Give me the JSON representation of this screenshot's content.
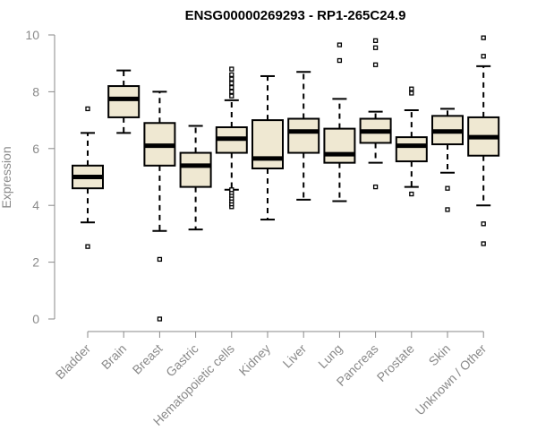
{
  "chart_data": {
    "type": "boxplot",
    "title": "ENSG00000269293 - RP1-265C24.9",
    "xlabel": "",
    "ylabel": "Expression",
    "ylim": [
      0,
      10
    ],
    "yticks": [
      0,
      2,
      4,
      6,
      8,
      10
    ],
    "box_fill": "#efe8d2",
    "box_stroke": "#000000",
    "categories": [
      "Bladder",
      "Brain",
      "Breast",
      "Gastric",
      "Hematopoietic cells",
      "Kidney",
      "Liver",
      "Lung",
      "Pancreas",
      "Prostate",
      "Skin",
      "Unknown / Other"
    ],
    "boxes": [
      {
        "category": "Bladder",
        "whisker_low": 3.4,
        "q1": 4.6,
        "median": 5.0,
        "q3": 5.4,
        "whisker_high": 6.55,
        "outliers": [
          2.55,
          7.4
        ]
      },
      {
        "category": "Brain",
        "whisker_low": 6.55,
        "q1": 7.1,
        "median": 7.75,
        "q3": 8.2,
        "whisker_high": 8.75,
        "outliers": []
      },
      {
        "category": "Breast",
        "whisker_low": 3.1,
        "q1": 5.4,
        "median": 6.1,
        "q3": 6.9,
        "whisker_high": 8.0,
        "outliers": [
          2.1,
          0.0
        ]
      },
      {
        "category": "Gastric",
        "whisker_low": 3.15,
        "q1": 4.65,
        "median": 5.4,
        "q3": 5.85,
        "whisker_high": 6.8,
        "outliers": []
      },
      {
        "category": "Hematopoietic cells",
        "whisker_low": 4.55,
        "q1": 5.85,
        "median": 6.35,
        "q3": 6.75,
        "whisker_high": 7.7,
        "outliers": [
          3.95,
          4.05,
          4.15,
          4.25,
          4.35,
          4.45,
          4.55,
          7.85,
          8.0,
          8.15,
          8.3,
          8.45,
          8.6,
          8.8
        ]
      },
      {
        "category": "Kidney",
        "whisker_low": 3.5,
        "q1": 5.3,
        "median": 5.65,
        "q3": 7.0,
        "whisker_high": 8.55,
        "outliers": []
      },
      {
        "category": "Liver",
        "whisker_low": 4.2,
        "q1": 5.85,
        "median": 6.6,
        "q3": 7.05,
        "whisker_high": 8.7,
        "outliers": []
      },
      {
        "category": "Lung",
        "whisker_low": 4.15,
        "q1": 5.5,
        "median": 5.8,
        "q3": 6.7,
        "whisker_high": 7.75,
        "outliers": [
          9.1,
          9.65
        ]
      },
      {
        "category": "Pancreas",
        "whisker_low": 5.5,
        "q1": 6.2,
        "median": 6.6,
        "q3": 7.05,
        "whisker_high": 7.3,
        "outliers": [
          4.65,
          8.95,
          9.55,
          9.8
        ]
      },
      {
        "category": "Prostate",
        "whisker_low": 4.65,
        "q1": 5.55,
        "median": 6.1,
        "q3": 6.4,
        "whisker_high": 7.35,
        "outliers": [
          4.4,
          7.95,
          8.1
        ]
      },
      {
        "category": "Skin",
        "whisker_low": 5.15,
        "q1": 6.15,
        "median": 6.6,
        "q3": 7.15,
        "whisker_high": 7.4,
        "outliers": [
          3.85,
          4.6
        ]
      },
      {
        "category": "Unknown / Other",
        "whisker_low": 4.0,
        "q1": 5.75,
        "median": 6.4,
        "q3": 7.1,
        "whisker_high": 8.9,
        "outliers": [
          2.65,
          3.35,
          9.25,
          9.9
        ]
      }
    ]
  }
}
